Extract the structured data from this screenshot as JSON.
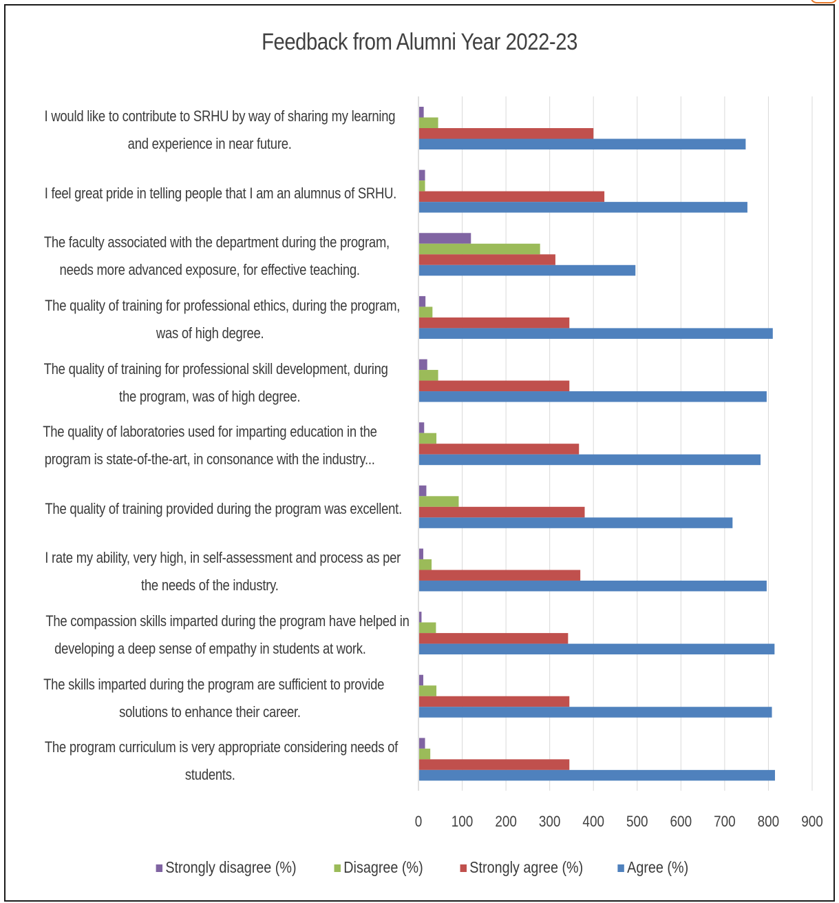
{
  "chart_data": {
    "type": "bar",
    "orientation": "horizontal",
    "title": "Feedback from Alumni Year 2022-23",
    "categories": [
      [
        "I would like to contribute to SRHU by way of sharing my learning",
        "and experience in near future."
      ],
      [
        "I feel great pride in telling people that I am an alumnus of SRHU."
      ],
      [
        "The faculty associated with the department during the program,",
        "needs more advanced exposure, for effective teaching."
      ],
      [
        "The quality of training for professional ethics, during the program,",
        "was of high degree."
      ],
      [
        "The quality of training for professional skill development, during",
        "the program, was of high degree."
      ],
      [
        "The quality of laboratories used for imparting education in the",
        "program is state-of-the-art, in consonance with the industry..."
      ],
      [
        "The quality of training provided during the program was excellent."
      ],
      [
        "I rate my ability, very high, in self-assessment and process as per",
        "the needs of the industry."
      ],
      [
        "The compassion skills imparted during the program have helped in",
        "developing a deep sense of empathy in students at work."
      ],
      [
        "The skills imparted during the program are sufficient to provide",
        "solutions to enhance their career."
      ],
      [
        "The program curriculum is very appropriate considering needs of",
        "students."
      ]
    ],
    "series": [
      {
        "name": "Strongly disagree (%)",
        "color": "#8064A2",
        "values": [
          12,
          15,
          120,
          16,
          20,
          13,
          18,
          11,
          7,
          11,
          15
        ]
      },
      {
        "name": "Disagree (%)",
        "color": "#9BBB59",
        "values": [
          45,
          15,
          278,
          32,
          45,
          41,
          92,
          30,
          40,
          41,
          27
        ]
      },
      {
        "name": "Strongly agree (%)",
        "color": "#C0504D",
        "values": [
          400,
          425,
          313,
          345,
          345,
          367,
          380,
          370,
          342,
          345,
          345
        ]
      },
      {
        "name": "Agree (%)",
        "color": "#4F81BD",
        "values": [
          748,
          752,
          496,
          810,
          796,
          782,
          718,
          796,
          814,
          808,
          815
        ]
      }
    ],
    "xlim": [
      0,
      900
    ],
    "xticks": [
      "0",
      "100",
      "200",
      "300",
      "400",
      "500",
      "600",
      "700",
      "800",
      "900"
    ],
    "grid": true,
    "legend_position": "bottom"
  }
}
